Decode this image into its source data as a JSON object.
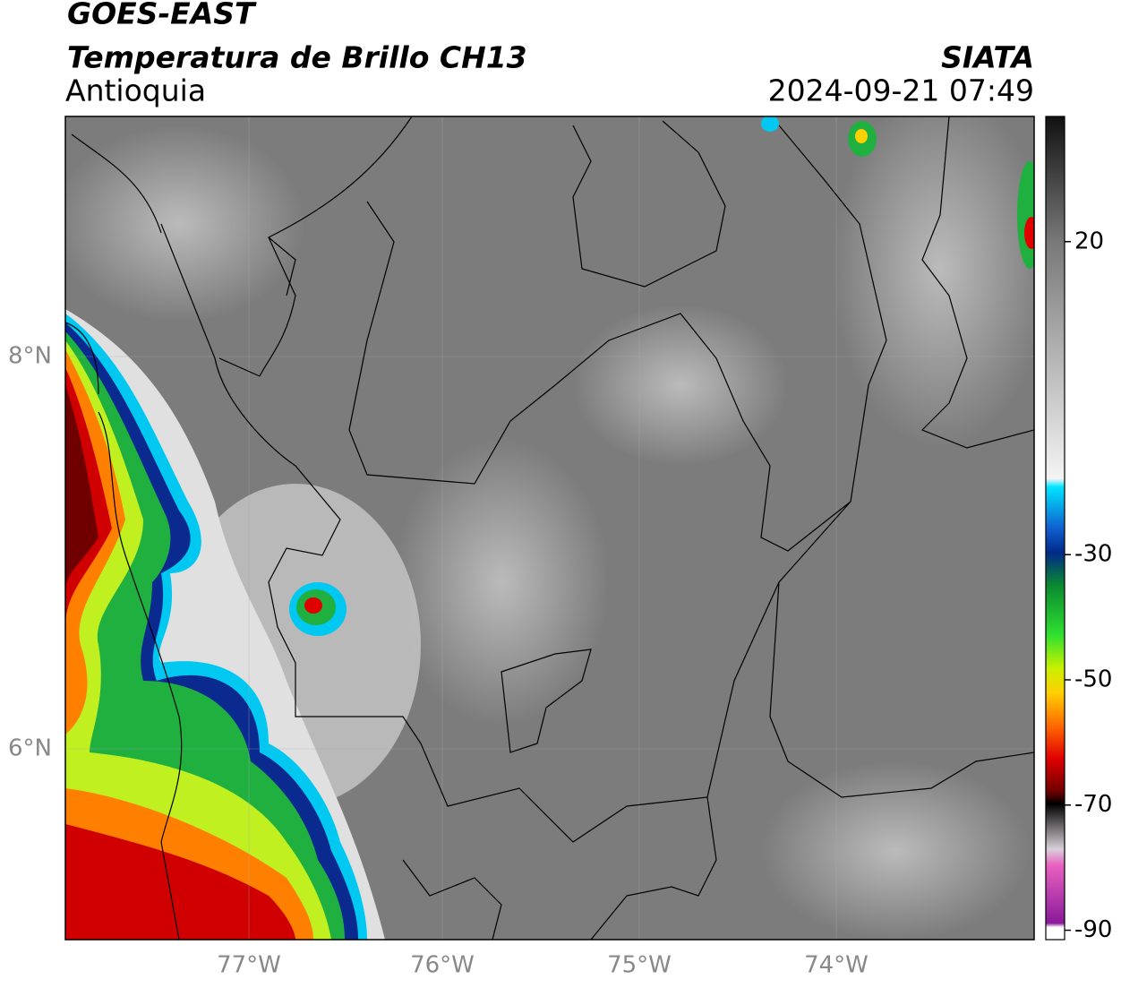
{
  "header": {
    "title": "GOES-EAST",
    "subtitle": "Temperatura de Brillo CH13",
    "region": "Antioquia",
    "source": "SIATA",
    "datetime": "2024-09-21 07:49"
  },
  "map": {
    "lat_labels": [
      "8°N",
      "6°N"
    ],
    "lon_labels": [
      "77°W",
      "76°W",
      "75°W",
      "74°W"
    ]
  },
  "colorbar": {
    "limits": [
      -91.5,
      40
    ],
    "ticks": [
      20,
      -30,
      -50,
      -70,
      -90
    ]
  }
}
